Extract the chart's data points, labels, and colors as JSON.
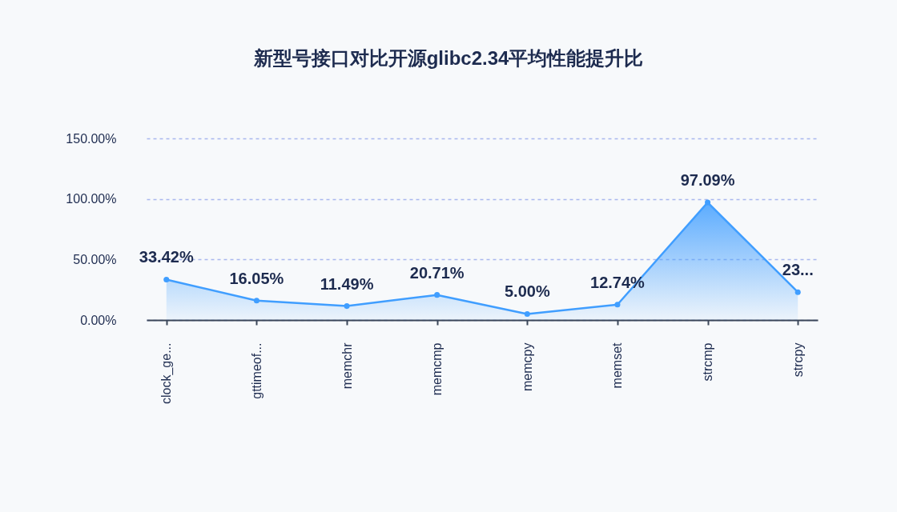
{
  "chart_data": {
    "type": "area",
    "title": "新型号接口对比开源glibc2.34平均性能提升比",
    "categories": [
      "clock_ge...",
      "gttimeof...",
      "memchr",
      "memcmp",
      "memcpy",
      "memset",
      "strcmp",
      "strcpy"
    ],
    "values": [
      33.42,
      16.05,
      11.49,
      20.71,
      5.0,
      12.74,
      97.09,
      23
    ],
    "value_labels": [
      "33.42%",
      "16.05%",
      "11.49%",
      "20.71%",
      "5.00%",
      "12.74%",
      "97.09%",
      "23..."
    ],
    "color": "#409eff",
    "ylim": [
      0,
      150
    ],
    "yticks": [
      {
        "value": 0,
        "label": "0.00%"
      },
      {
        "value": 50,
        "label": "50.00%"
      },
      {
        "value": 100,
        "label": "100.00%"
      },
      {
        "value": 150,
        "label": "150.00%"
      }
    ],
    "grid": "y",
    "marker": "circle",
    "line_style": "solid"
  }
}
